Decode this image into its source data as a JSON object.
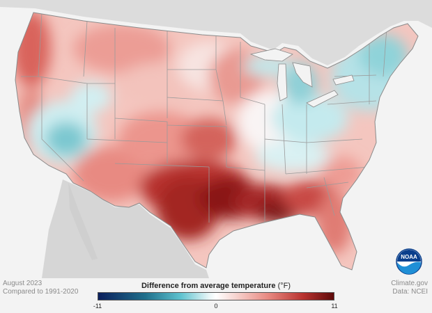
{
  "date_label": "August 2023",
  "baseline_label": "Compared to 1991-2020",
  "legend": {
    "title": "Difference from average temperature",
    "unit": "(°F)",
    "min": -11,
    "mid": 0,
    "max": 11,
    "min_label": "-11",
    "mid_label": "0",
    "max_label": "11",
    "colors": [
      "#0b1f5c",
      "#1f6f8b",
      "#5ec2cf",
      "#e9f6f7",
      "#ffffff",
      "#f7d6d2",
      "#e88a82",
      "#b8322f",
      "#5e0a0a"
    ]
  },
  "credit": {
    "source": "Climate.gov",
    "data": "Data: NCEI"
  },
  "logo": {
    "text": "NOAA",
    "icon": "noaa-logo-icon"
  },
  "colors": {
    "background": "#f3f3f3",
    "land_outside": "#d9d9d9",
    "state_borders": "#9a9a9a"
  }
}
